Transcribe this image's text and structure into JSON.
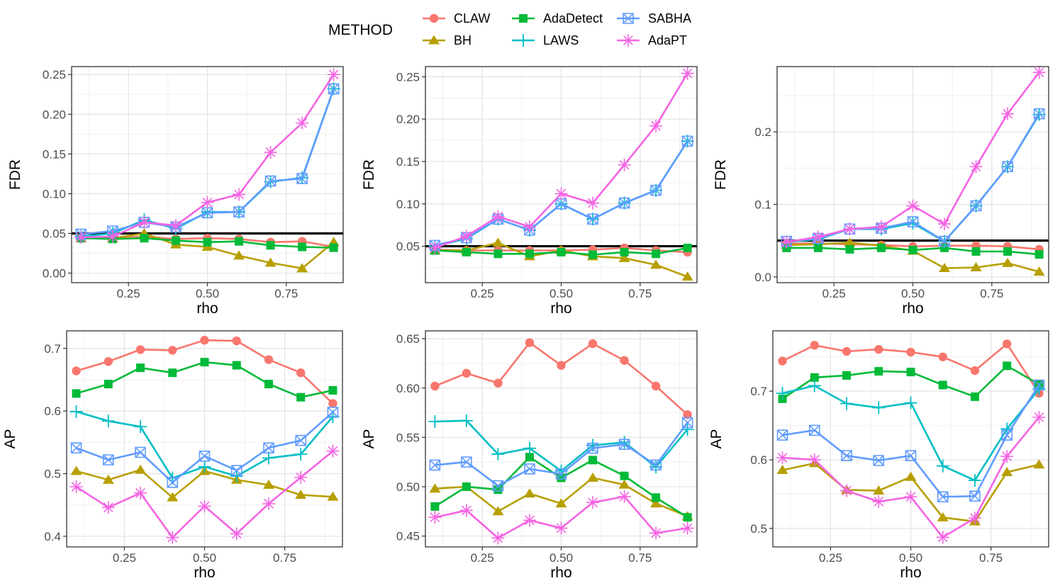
{
  "legend": {
    "title": "METHOD",
    "placement": "top",
    "items": [
      {
        "name": "CLAW",
        "color": "#F8766D",
        "marker": "circle"
      },
      {
        "name": "BH",
        "color": "#B79F00",
        "marker": "triangle"
      },
      {
        "name": "AdaDetect",
        "color": "#00BA38",
        "marker": "square"
      },
      {
        "name": "LAWS",
        "color": "#00BFC4",
        "marker": "plus"
      },
      {
        "name": "SABHA",
        "color": "#619CFF",
        "marker": "square-x"
      },
      {
        "name": "AdaPT",
        "color": "#F564E3",
        "marker": "asterisk"
      }
    ]
  },
  "chart_data": [
    {
      "type": "line",
      "panel": "top-left",
      "xlabel": "rho",
      "ylabel": "FDR",
      "xlim": [
        0.07,
        0.93
      ],
      "ylim": [
        -0.012,
        0.26
      ],
      "xticks": [
        0.25,
        0.5,
        0.75
      ],
      "xtick_labels": [
        "0.25",
        "0.50",
        "0.75"
      ],
      "yticks": [
        0,
        0.05,
        0.1,
        0.15,
        0.2,
        0.25
      ],
      "ytick_labels": [
        "0.00",
        "0.05",
        "0.10",
        "0.15",
        "0.20",
        "0.25"
      ],
      "hline": 0.05,
      "grid": true,
      "x": [
        0.1,
        0.2,
        0.3,
        0.4,
        0.5,
        0.6,
        0.7,
        0.8,
        0.9
      ],
      "series": [
        {
          "name": "CLAW",
          "values": [
            0.044,
            0.044,
            0.046,
            0.043,
            0.044,
            0.043,
            0.039,
            0.04,
            0.033
          ]
        },
        {
          "name": "BH",
          "values": [
            0.044,
            0.044,
            0.05,
            0.036,
            0.033,
            0.022,
            0.013,
            0.006,
            0.039
          ]
        },
        {
          "name": "AdaDetect",
          "values": [
            0.044,
            0.043,
            0.044,
            0.041,
            0.039,
            0.04,
            0.035,
            0.033,
            0.032
          ]
        },
        {
          "name": "LAWS",
          "values": [
            0.046,
            0.05,
            0.067,
            0.056,
            0.077,
            0.077,
            0.115,
            0.12,
            0.232
          ]
        },
        {
          "name": "SABHA",
          "values": [
            0.049,
            0.053,
            0.064,
            0.058,
            0.076,
            0.077,
            0.116,
            0.119,
            0.232
          ]
        },
        {
          "name": "AdaPT",
          "values": [
            0.045,
            0.046,
            0.064,
            0.06,
            0.089,
            0.099,
            0.152,
            0.189,
            0.25
          ]
        }
      ]
    },
    {
      "type": "line",
      "panel": "top-middle",
      "xlabel": "rho",
      "ylabel": "FDR",
      "xlim": [
        0.07,
        0.93
      ],
      "ylim": [
        0.007,
        0.262
      ],
      "xticks": [
        0.25,
        0.5,
        0.75
      ],
      "xtick_labels": [
        "0.25",
        "0.50",
        "0.75"
      ],
      "yticks": [
        0.05,
        0.1,
        0.15,
        0.2,
        0.25
      ],
      "ytick_labels": [
        "0.05",
        "0.10",
        "0.15",
        "0.20",
        "0.25"
      ],
      "hline": 0.05,
      "grid": true,
      "x": [
        0.1,
        0.2,
        0.3,
        0.4,
        0.5,
        0.6,
        0.7,
        0.8,
        0.9
      ],
      "series": [
        {
          "name": "CLAW",
          "values": [
            0.046,
            0.045,
            0.045,
            0.045,
            0.045,
            0.046,
            0.048,
            0.045,
            0.043
          ]
        },
        {
          "name": "BH",
          "values": [
            0.045,
            0.045,
            0.054,
            0.038,
            0.045,
            0.038,
            0.036,
            0.028,
            0.014
          ]
        },
        {
          "name": "AdaDetect",
          "values": [
            0.045,
            0.043,
            0.041,
            0.041,
            0.043,
            0.04,
            0.043,
            0.041,
            0.048
          ]
        },
        {
          "name": "LAWS",
          "values": [
            0.05,
            0.059,
            0.082,
            0.069,
            0.1,
            0.082,
            0.101,
            0.116,
            0.174
          ]
        },
        {
          "name": "SABHA",
          "values": [
            0.051,
            0.06,
            0.082,
            0.069,
            0.1,
            0.082,
            0.101,
            0.116,
            0.174
          ]
        },
        {
          "name": "AdaPT",
          "values": [
            0.048,
            0.062,
            0.085,
            0.073,
            0.112,
            0.101,
            0.146,
            0.192,
            0.254
          ]
        }
      ]
    },
    {
      "type": "line",
      "panel": "top-right",
      "xlabel": "rho",
      "ylabel": "FDR",
      "xlim": [
        0.07,
        0.93
      ],
      "ylim": [
        -0.008,
        0.29
      ],
      "xticks": [
        0.25,
        0.5,
        0.75
      ],
      "xtick_labels": [
        "0.25",
        "0.50",
        "0.75"
      ],
      "yticks": [
        0,
        0.1,
        0.2
      ],
      "ytick_labels": [
        "0.0",
        "0.1",
        "0.2"
      ],
      "hline": 0.05,
      "grid": true,
      "x": [
        0.1,
        0.2,
        0.3,
        0.4,
        0.5,
        0.6,
        0.7,
        0.8,
        0.9
      ],
      "series": [
        {
          "name": "CLAW",
          "values": [
            0.046,
            0.046,
            0.045,
            0.044,
            0.042,
            0.043,
            0.043,
            0.042,
            0.038
          ]
        },
        {
          "name": "BH",
          "values": [
            0.044,
            0.045,
            0.047,
            0.043,
            0.036,
            0.012,
            0.013,
            0.019,
            0.007
          ]
        },
        {
          "name": "AdaDetect",
          "values": [
            0.04,
            0.04,
            0.038,
            0.04,
            0.037,
            0.04,
            0.035,
            0.035,
            0.031
          ]
        },
        {
          "name": "LAWS",
          "values": [
            0.048,
            0.052,
            0.066,
            0.066,
            0.074,
            0.049,
            0.098,
            0.152,
            0.224
          ]
        },
        {
          "name": "SABHA",
          "values": [
            0.049,
            0.053,
            0.066,
            0.067,
            0.076,
            0.049,
            0.098,
            0.152,
            0.225
          ]
        },
        {
          "name": "AdaPT",
          "values": [
            0.048,
            0.055,
            0.066,
            0.069,
            0.098,
            0.073,
            0.152,
            0.225,
            0.282
          ]
        }
      ]
    },
    {
      "type": "line",
      "panel": "bottom-left",
      "xlabel": "rho",
      "ylabel": "AP",
      "xlim": [
        0.07,
        0.93
      ],
      "ylim": [
        0.383,
        0.728
      ],
      "xticks": [
        0.25,
        0.5,
        0.75
      ],
      "xtick_labels": [
        "0.25",
        "0.50",
        "0.75"
      ],
      "yticks": [
        0.4,
        0.5,
        0.6,
        0.7
      ],
      "ytick_labels": [
        "0.4",
        "0.5",
        "0.6",
        "0.7"
      ],
      "grid": true,
      "x": [
        0.1,
        0.2,
        0.3,
        0.4,
        0.5,
        0.6,
        0.7,
        0.8,
        0.9
      ],
      "series": [
        {
          "name": "CLAW",
          "values": [
            0.664,
            0.679,
            0.698,
            0.697,
            0.713,
            0.712,
            0.682,
            0.661,
            0.612
          ]
        },
        {
          "name": "BH",
          "values": [
            0.504,
            0.49,
            0.506,
            0.462,
            0.504,
            0.49,
            0.482,
            0.466,
            0.463
          ]
        },
        {
          "name": "AdaDetect",
          "values": [
            0.628,
            0.643,
            0.669,
            0.661,
            0.678,
            0.673,
            0.643,
            0.622,
            0.633
          ]
        },
        {
          "name": "LAWS",
          "values": [
            0.599,
            0.584,
            0.575,
            0.493,
            0.511,
            0.496,
            0.525,
            0.531,
            0.591
          ]
        },
        {
          "name": "SABHA",
          "values": [
            0.541,
            0.522,
            0.534,
            0.486,
            0.528,
            0.505,
            0.541,
            0.553,
            0.598
          ]
        },
        {
          "name": "AdaPT",
          "values": [
            0.479,
            0.446,
            0.469,
            0.398,
            0.448,
            0.404,
            0.452,
            0.494,
            0.536
          ]
        }
      ]
    },
    {
      "type": "line",
      "panel": "bottom-middle",
      "xlabel": "rho",
      "ylabel": "AP",
      "xlim": [
        0.07,
        0.93
      ],
      "ylim": [
        0.439,
        0.658
      ],
      "xticks": [
        0.25,
        0.5,
        0.75
      ],
      "xtick_labels": [
        "0.25",
        "0.50",
        "0.75"
      ],
      "yticks": [
        0.45,
        0.5,
        0.55,
        0.6,
        0.65
      ],
      "ytick_labels": [
        "0.45",
        "0.50",
        "0.55",
        "0.60",
        "0.65"
      ],
      "grid": true,
      "x": [
        0.1,
        0.2,
        0.3,
        0.4,
        0.5,
        0.6,
        0.7,
        0.8,
        0.9
      ],
      "series": [
        {
          "name": "CLAW",
          "values": [
            0.602,
            0.615,
            0.605,
            0.646,
            0.623,
            0.645,
            0.628,
            0.602,
            0.573
          ]
        },
        {
          "name": "BH",
          "values": [
            0.498,
            0.5,
            0.475,
            0.493,
            0.483,
            0.509,
            0.502,
            0.483,
            0.47
          ]
        },
        {
          "name": "AdaDetect",
          "values": [
            0.48,
            0.5,
            0.497,
            0.53,
            0.509,
            0.527,
            0.511,
            0.489,
            0.469
          ]
        },
        {
          "name": "LAWS",
          "values": [
            0.566,
            0.567,
            0.533,
            0.539,
            0.516,
            0.542,
            0.545,
            0.52,
            0.558
          ]
        },
        {
          "name": "SABHA",
          "values": [
            0.522,
            0.525,
            0.501,
            0.518,
            0.513,
            0.539,
            0.543,
            0.522,
            0.565
          ]
        },
        {
          "name": "AdaPT",
          "values": [
            0.469,
            0.476,
            0.448,
            0.466,
            0.458,
            0.484,
            0.49,
            0.453,
            0.458
          ]
        }
      ]
    },
    {
      "type": "line",
      "panel": "bottom-right",
      "xlabel": "rho",
      "ylabel": "AP",
      "xlim": [
        0.07,
        0.93
      ],
      "ylim": [
        0.473,
        0.788
      ],
      "xticks": [
        0.25,
        0.5,
        0.75
      ],
      "xtick_labels": [
        "0.25",
        "0.50",
        "0.75"
      ],
      "yticks": [
        0.5,
        0.6,
        0.7
      ],
      "ytick_labels": [
        "0.5",
        "0.6",
        "0.7"
      ],
      "grid": true,
      "x": [
        0.1,
        0.2,
        0.3,
        0.4,
        0.5,
        0.6,
        0.7,
        0.8,
        0.9
      ],
      "series": [
        {
          "name": "CLAW",
          "values": [
            0.744,
            0.767,
            0.758,
            0.761,
            0.757,
            0.75,
            0.73,
            0.769,
            0.697
          ]
        },
        {
          "name": "BH",
          "values": [
            0.585,
            0.595,
            0.556,
            0.555,
            0.575,
            0.516,
            0.51,
            0.582,
            0.593
          ]
        },
        {
          "name": "AdaDetect",
          "values": [
            0.689,
            0.72,
            0.723,
            0.729,
            0.728,
            0.709,
            0.692,
            0.737,
            0.71
          ]
        },
        {
          "name": "LAWS",
          "values": [
            0.697,
            0.708,
            0.682,
            0.676,
            0.683,
            0.591,
            0.57,
            0.645,
            0.703
          ]
        },
        {
          "name": "SABHA",
          "values": [
            0.636,
            0.643,
            0.606,
            0.599,
            0.606,
            0.546,
            0.547,
            0.636,
            0.709
          ]
        },
        {
          "name": "AdaPT",
          "values": [
            0.603,
            0.6,
            0.555,
            0.539,
            0.546,
            0.487,
            0.515,
            0.605,
            0.662
          ]
        }
      ]
    }
  ]
}
